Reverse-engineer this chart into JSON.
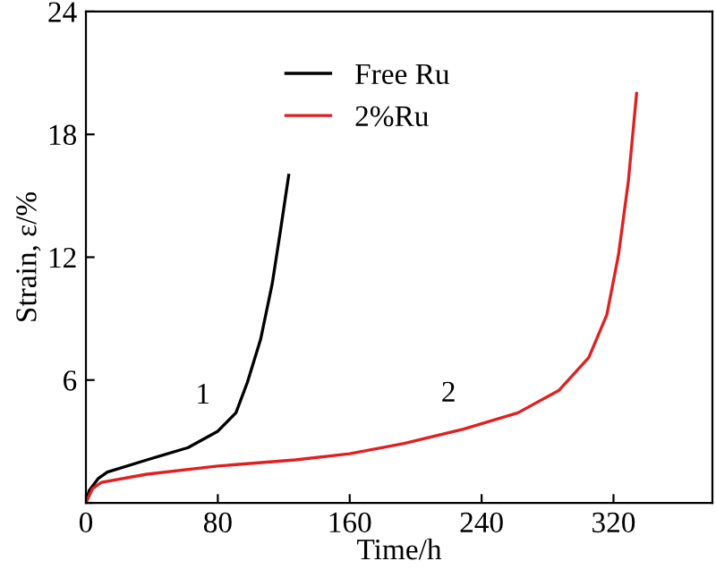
{
  "chart_data": {
    "type": "line",
    "xlabel": "Time/h",
    "ylabel": "Strain, ε/%",
    "xlim": [
      0,
      380
    ],
    "ylim": [
      0,
      24
    ],
    "xticks": [
      0,
      80,
      160,
      240,
      320
    ],
    "yticks": [
      {
        "value": 0,
        "label": null
      },
      6,
      12,
      18,
      24
    ],
    "legend": "top",
    "grid": false,
    "marker": "none",
    "line_style": "solid",
    "annotations": [
      {
        "text": "1",
        "x": 80,
        "y": 3.5
      },
      {
        "text": "2",
        "x": 229,
        "y": 3.6
      }
    ],
    "series": [
      {
        "name": "Free Ru",
        "color": "#000000",
        "x": [
          0,
          2,
          7.6,
          13,
          37,
          62,
          80,
          91,
          98,
          106,
          113,
          118,
          123
        ],
        "values": [
          0,
          0.6,
          1.2,
          1.5,
          2.1,
          2.7,
          3.5,
          4.4,
          5.9,
          8,
          10.7,
          13.3,
          16
        ]
      },
      {
        "name": "2%Ru",
        "color": "#e02020",
        "x": [
          0,
          4,
          9.4,
          37,
          80,
          127,
          160,
          193,
          229,
          262,
          287,
          305,
          316,
          323,
          329,
          334
        ],
        "values": [
          0,
          0.7,
          1.0,
          1.4,
          1.8,
          2.1,
          2.4,
          2.9,
          3.6,
          4.4,
          5.5,
          7.1,
          9.2,
          12.1,
          15.7,
          20
        ]
      }
    ]
  }
}
